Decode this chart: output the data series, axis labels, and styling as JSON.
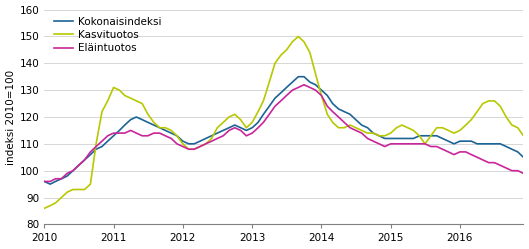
{
  "title": "",
  "ylabel": "indeksi 2010=100",
  "ylim": [
    80,
    160
  ],
  "yticks": [
    80,
    90,
    100,
    110,
    120,
    130,
    140,
    150,
    160
  ],
  "xtick_years": [
    "2010",
    "2011",
    "2012",
    "2013",
    "2014",
    "2015",
    "2016"
  ],
  "legend_labels": [
    "Kokonaisindeksi",
    "Kasvituotos",
    "Eläintuotos"
  ],
  "colors": {
    "kokonaisindeksi": "#1c6496",
    "kasvituotos": "#b8c800",
    "elaintuotos": "#c8259a"
  },
  "linewidth": 1.2,
  "kokonaisindeksi": [
    96,
    95,
    96,
    97,
    98,
    100,
    102,
    104,
    106,
    108,
    109,
    111,
    113,
    115,
    117,
    119,
    120,
    119,
    118,
    117,
    116,
    115,
    114,
    113,
    111,
    110,
    110,
    111,
    112,
    113,
    114,
    115,
    116,
    117,
    116,
    115,
    116,
    118,
    121,
    124,
    127,
    129,
    131,
    133,
    135,
    135,
    133,
    132,
    130,
    128,
    125,
    123,
    122,
    121,
    119,
    117,
    116,
    114,
    113,
    112,
    112,
    112,
    112,
    112,
    112,
    113,
    113,
    113,
    113,
    112,
    111,
    110,
    111,
    111,
    111,
    110,
    110,
    110,
    110,
    110,
    109,
    108,
    107,
    105
  ],
  "kasvituotos": [
    86,
    87,
    88,
    90,
    92,
    93,
    93,
    93,
    95,
    110,
    122,
    126,
    131,
    130,
    128,
    127,
    126,
    125,
    121,
    118,
    116,
    116,
    115,
    113,
    110,
    108,
    108,
    109,
    110,
    112,
    116,
    118,
    120,
    121,
    119,
    116,
    118,
    122,
    126,
    133,
    140,
    143,
    145,
    148,
    150,
    148,
    144,
    136,
    128,
    121,
    118,
    116,
    116,
    117,
    116,
    115,
    114,
    114,
    113,
    113,
    114,
    116,
    117,
    116,
    115,
    113,
    110,
    113,
    116,
    116,
    115,
    114,
    115,
    117,
    119,
    122,
    125,
    126,
    126,
    124,
    120,
    117,
    116,
    113
  ],
  "elaintuotos": [
    96,
    96,
    97,
    97,
    99,
    100,
    102,
    104,
    107,
    109,
    111,
    113,
    114,
    114,
    114,
    115,
    114,
    113,
    113,
    114,
    114,
    113,
    112,
    110,
    109,
    108,
    108,
    109,
    110,
    111,
    112,
    113,
    115,
    116,
    115,
    113,
    114,
    116,
    118,
    121,
    124,
    126,
    128,
    130,
    131,
    132,
    131,
    130,
    128,
    124,
    122,
    120,
    118,
    116,
    115,
    114,
    112,
    111,
    110,
    109,
    110,
    110,
    110,
    110,
    110,
    110,
    110,
    109,
    109,
    108,
    107,
    106,
    107,
    107,
    106,
    105,
    104,
    103,
    103,
    102,
    101,
    100,
    100,
    99
  ]
}
